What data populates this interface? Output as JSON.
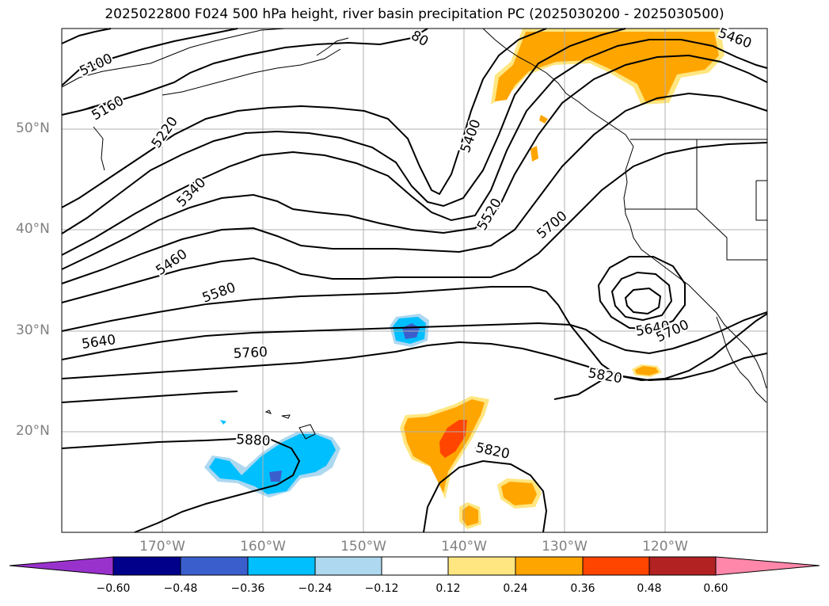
{
  "title": "2025022800 F024 500 hPa height, river basin precipitation PC (2025030200 - 2025030500)",
  "latitude_labels": [
    "50°N",
    "40°N",
    "30°N",
    "20°N"
  ],
  "longitude_labels": [
    "170°W",
    "160°W",
    "150°W",
    "140°W",
    "130°W",
    "120°W"
  ],
  "contour_labels": [
    "5100",
    "5160",
    "5220",
    "5340",
    "5460",
    "5580",
    "5640",
    "5760",
    "5880",
    "5400",
    "5520",
    "5700",
    "5640",
    "5700",
    "5820",
    "5820",
    "5460",
    "80"
  ],
  "colorbar": {
    "ticks": [
      "−0.60",
      "−0.48",
      "−0.36",
      "−0.24",
      "−0.12",
      "0.12",
      "0.24",
      "0.36",
      "0.48",
      "0.60"
    ],
    "colors": [
      "#9932cc",
      "#00008b",
      "#3a5fcd",
      "#00bfff",
      "#add8f0",
      "#ffffff",
      "#ffe680",
      "#ffa500",
      "#ff4500",
      "#b22222",
      "#ff88aa"
    ]
  },
  "colors": {
    "contour": "#000000",
    "grid": "#b0b0b0",
    "coast": "#000000"
  }
}
